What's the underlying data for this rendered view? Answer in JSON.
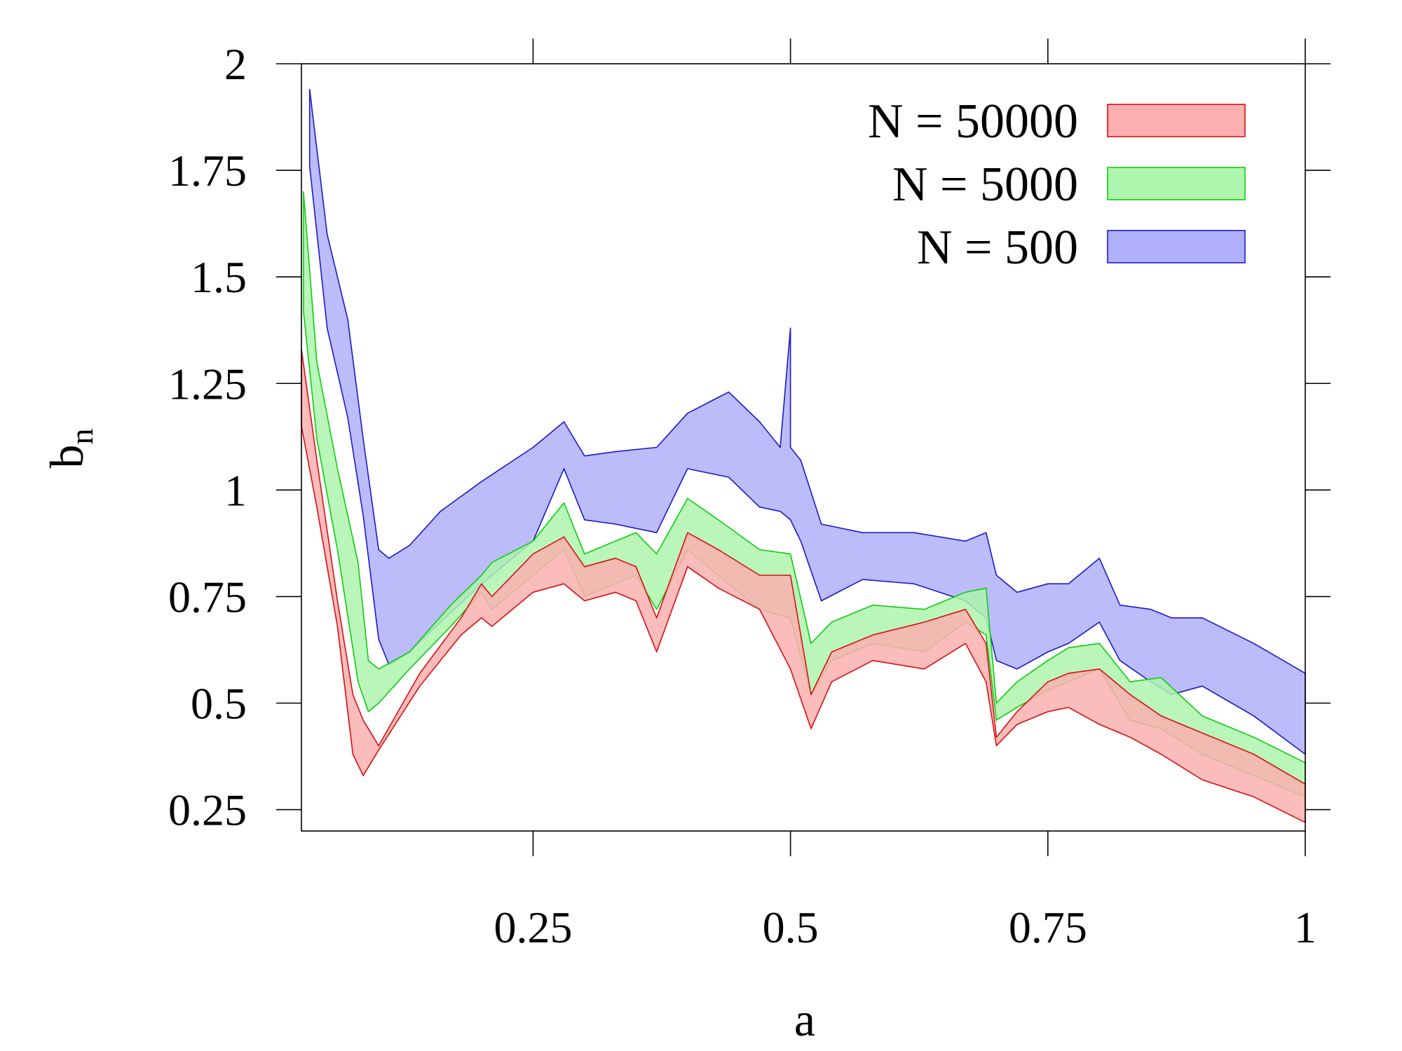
{
  "chart_data": {
    "type": "area",
    "xlabel": "a",
    "ylabel_base": "b",
    "ylabel_sub": "n",
    "xlim": [
      0.025,
      1.0
    ],
    "ylim": [
      0.2,
      2.0
    ],
    "x_ticks": [
      0.25,
      0.5,
      0.75,
      1
    ],
    "x_tick_labels": [
      "0.25",
      "0.5",
      "0.75",
      "1"
    ],
    "y_ticks": [
      0.25,
      0.5,
      0.75,
      1,
      1.25,
      1.5,
      1.75,
      2
    ],
    "y_tick_labels": [
      "0.25",
      "0.5",
      "0.75",
      "1",
      "1.25",
      "1.5",
      "1.75",
      "2"
    ],
    "grid": false,
    "legend_position": "top-right",
    "series": [
      {
        "name": "N = 500",
        "fill": "#b0b0fa",
        "stroke": "#1a1acc",
        "x": [
          0.033,
          0.05,
          0.07,
          0.085,
          0.1,
          0.11,
          0.13,
          0.16,
          0.2,
          0.25,
          0.28,
          0.3,
          0.33,
          0.37,
          0.4,
          0.44,
          0.47,
          0.49,
          0.5,
          0.5,
          0.51,
          0.53,
          0.57,
          0.62,
          0.67,
          0.69,
          0.7,
          0.72,
          0.75,
          0.77,
          0.8,
          0.82,
          0.85,
          0.87,
          0.9,
          0.95,
          1.0
        ],
        "upper": [
          1.94,
          1.6,
          1.4,
          1.12,
          0.86,
          0.84,
          0.87,
          0.95,
          1.02,
          1.1,
          1.16,
          1.08,
          1.09,
          1.1,
          1.18,
          1.23,
          1.16,
          1.1,
          1.38,
          1.1,
          1.07,
          0.92,
          0.9,
          0.9,
          0.88,
          0.9,
          0.8,
          0.76,
          0.78,
          0.78,
          0.84,
          0.73,
          0.72,
          0.7,
          0.7,
          0.64,
          0.57
        ],
        "lower": [
          1.76,
          1.38,
          1.17,
          0.94,
          0.65,
          0.59,
          0.62,
          0.69,
          0.78,
          0.88,
          1.05,
          0.93,
          0.92,
          0.9,
          1.05,
          1.03,
          0.96,
          0.95,
          0.93,
          0.93,
          0.88,
          0.74,
          0.79,
          0.78,
          0.74,
          0.7,
          0.6,
          0.58,
          0.62,
          0.64,
          0.69,
          0.6,
          0.55,
          0.52,
          0.54,
          0.47,
          0.38
        ]
      },
      {
        "name": "N = 5000",
        "fill": "#aef5ae",
        "stroke": "#10cc10",
        "x": [
          0.027,
          0.04,
          0.06,
          0.08,
          0.09,
          0.1,
          0.13,
          0.17,
          0.2,
          0.21,
          0.25,
          0.28,
          0.3,
          0.33,
          0.35,
          0.37,
          0.4,
          0.43,
          0.47,
          0.5,
          0.52,
          0.54,
          0.58,
          0.63,
          0.67,
          0.69,
          0.7,
          0.72,
          0.75,
          0.77,
          0.8,
          0.83,
          0.86,
          0.9,
          0.95,
          1.0
        ],
        "upper": [
          1.7,
          1.3,
          1.05,
          0.83,
          0.6,
          0.58,
          0.62,
          0.73,
          0.8,
          0.83,
          0.88,
          0.97,
          0.85,
          0.88,
          0.9,
          0.85,
          0.98,
          0.93,
          0.86,
          0.85,
          0.64,
          0.69,
          0.73,
          0.72,
          0.76,
          0.77,
          0.5,
          0.55,
          0.6,
          0.63,
          0.64,
          0.55,
          0.56,
          0.47,
          0.42,
          0.36
        ],
        "lower": [
          1.42,
          1.12,
          0.86,
          0.55,
          0.48,
          0.5,
          0.58,
          0.68,
          0.76,
          0.72,
          0.8,
          0.86,
          0.75,
          0.78,
          0.8,
          0.72,
          0.86,
          0.8,
          0.72,
          0.7,
          0.52,
          0.6,
          0.64,
          0.62,
          0.69,
          0.66,
          0.46,
          0.49,
          0.53,
          0.55,
          0.58,
          0.46,
          0.44,
          0.38,
          0.33,
          0.28
        ]
      },
      {
        "name": "N = 50000",
        "fill": "#fab0b0",
        "stroke": "#d81010",
        "x": [
          0.025,
          0.04,
          0.06,
          0.075,
          0.085,
          0.1,
          0.14,
          0.18,
          0.2,
          0.21,
          0.25,
          0.28,
          0.3,
          0.33,
          0.35,
          0.37,
          0.4,
          0.43,
          0.47,
          0.5,
          0.52,
          0.54,
          0.58,
          0.63,
          0.67,
          0.69,
          0.7,
          0.72,
          0.75,
          0.77,
          0.8,
          0.83,
          0.86,
          0.9,
          0.95,
          1.0
        ],
        "upper": [
          1.33,
          1.07,
          0.74,
          0.52,
          0.46,
          0.4,
          0.57,
          0.7,
          0.78,
          0.75,
          0.85,
          0.89,
          0.82,
          0.84,
          0.82,
          0.7,
          0.9,
          0.86,
          0.8,
          0.8,
          0.52,
          0.62,
          0.66,
          0.69,
          0.72,
          0.64,
          0.42,
          0.48,
          0.55,
          0.57,
          0.58,
          0.52,
          0.47,
          0.43,
          0.38,
          0.31
        ],
        "lower": [
          1.15,
          0.96,
          0.68,
          0.38,
          0.33,
          0.39,
          0.54,
          0.66,
          0.7,
          0.68,
          0.76,
          0.78,
          0.74,
          0.76,
          0.74,
          0.62,
          0.82,
          0.77,
          0.72,
          0.58,
          0.44,
          0.55,
          0.6,
          0.58,
          0.64,
          0.55,
          0.4,
          0.45,
          0.48,
          0.49,
          0.45,
          0.42,
          0.38,
          0.32,
          0.28,
          0.22
        ]
      }
    ]
  }
}
